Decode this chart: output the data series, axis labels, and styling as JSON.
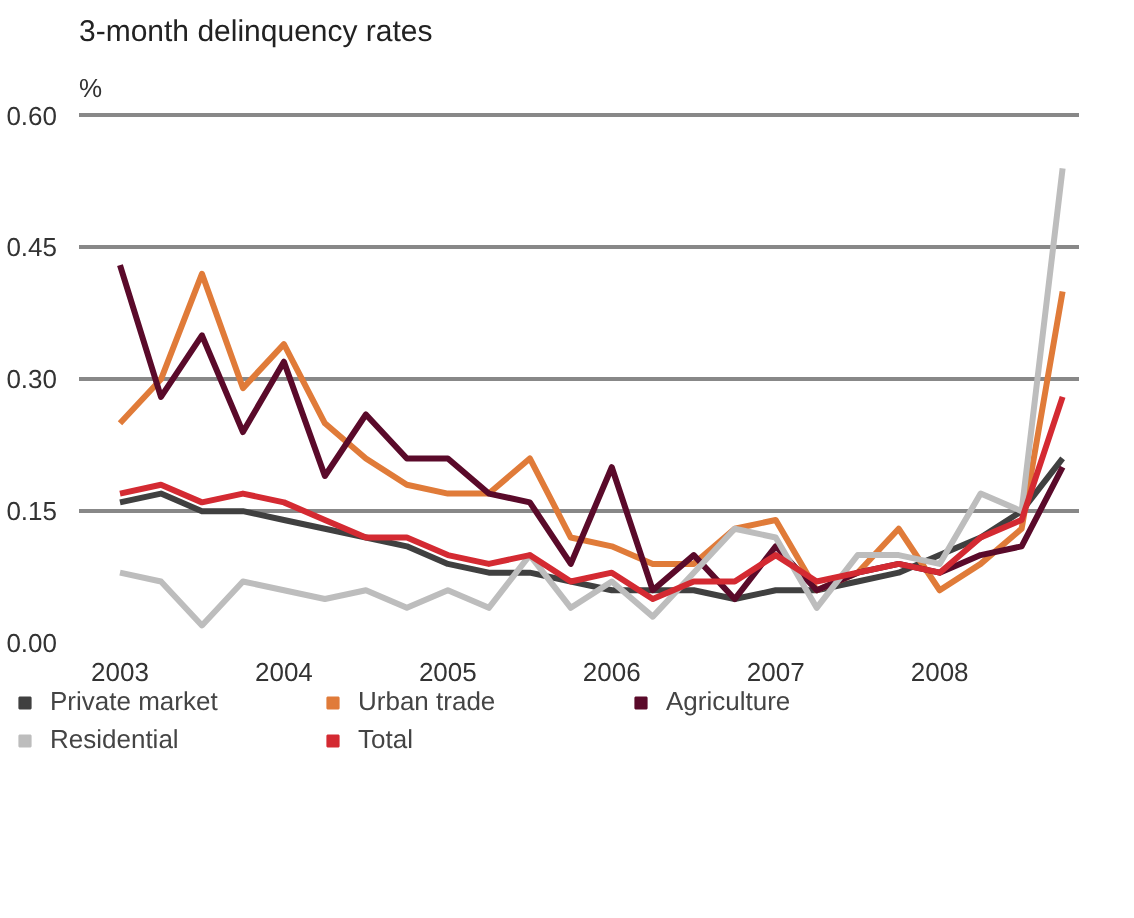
{
  "chart_data": {
    "type": "line",
    "title": "3-month delinquency rates",
    "ylabel": "%",
    "x": [
      2003,
      2003.25,
      2003.5,
      2003.75,
      2004,
      2004.25,
      2004.5,
      2004.75,
      2005,
      2005.25,
      2005.5,
      2005.75,
      2006,
      2006.25,
      2006.5,
      2006.75,
      2007,
      2007.25,
      2007.5,
      2007.75,
      2008,
      2008.25,
      2008.5,
      2008.75
    ],
    "series": [
      {
        "name": "Private market",
        "color": "#404040",
        "values": [
          0.16,
          0.17,
          0.15,
          0.15,
          0.14,
          0.13,
          0.12,
          0.11,
          0.09,
          0.08,
          0.08,
          0.07,
          0.06,
          0.06,
          0.06,
          0.05,
          0.06,
          0.06,
          0.07,
          0.08,
          0.1,
          0.12,
          0.15,
          0.21
        ]
      },
      {
        "name": "Urban trade",
        "color": "#e07b39",
        "values": [
          0.25,
          0.3,
          0.42,
          0.29,
          0.34,
          0.25,
          0.21,
          0.18,
          0.17,
          0.17,
          0.21,
          0.12,
          0.11,
          0.09,
          0.09,
          0.13,
          0.14,
          0.06,
          0.08,
          0.13,
          0.06,
          0.09,
          0.13,
          0.4
        ]
      },
      {
        "name": "Agriculture",
        "color": "#5a0a2a",
        "values": [
          0.43,
          0.28,
          0.35,
          0.24,
          0.32,
          0.19,
          0.26,
          0.21,
          0.21,
          0.17,
          0.16,
          0.09,
          0.2,
          0.06,
          0.1,
          0.05,
          0.11,
          0.06,
          0.08,
          0.09,
          0.08,
          0.1,
          0.11,
          0.2
        ]
      },
      {
        "name": "Residential",
        "color": "#bdbdbd",
        "values": [
          0.08,
          0.07,
          0.02,
          0.07,
          0.06,
          0.05,
          0.06,
          0.04,
          0.06,
          0.04,
          0.1,
          0.04,
          0.07,
          0.03,
          0.08,
          0.13,
          0.12,
          0.04,
          0.1,
          0.1,
          0.09,
          0.17,
          0.15,
          0.54
        ]
      },
      {
        "name": "Total",
        "color": "#d42a32",
        "values": [
          0.17,
          0.18,
          0.16,
          0.17,
          0.16,
          0.14,
          0.12,
          0.12,
          0.1,
          0.09,
          0.1,
          0.07,
          0.08,
          0.05,
          0.07,
          0.07,
          0.1,
          0.07,
          0.08,
          0.09,
          0.08,
          0.12,
          0.14,
          0.28
        ]
      }
    ],
    "xlim": [
      2002.75,
      2008.85
    ],
    "ylim": [
      0,
      0.603
    ],
    "xticks": [
      2003,
      2004,
      2005,
      2006,
      2007,
      2008
    ],
    "yticks": [
      {
        "value": 0,
        "label": "0.00"
      },
      {
        "value": 0.15,
        "label": "0.15"
      },
      {
        "value": 0.3,
        "label": "0.30"
      },
      {
        "value": 0.45,
        "label": "0.45"
      },
      {
        "value": 0.6,
        "label": "0.60"
      }
    ],
    "grid": "y",
    "legend": "bottom",
    "marker": "none",
    "line_style": "solid"
  }
}
